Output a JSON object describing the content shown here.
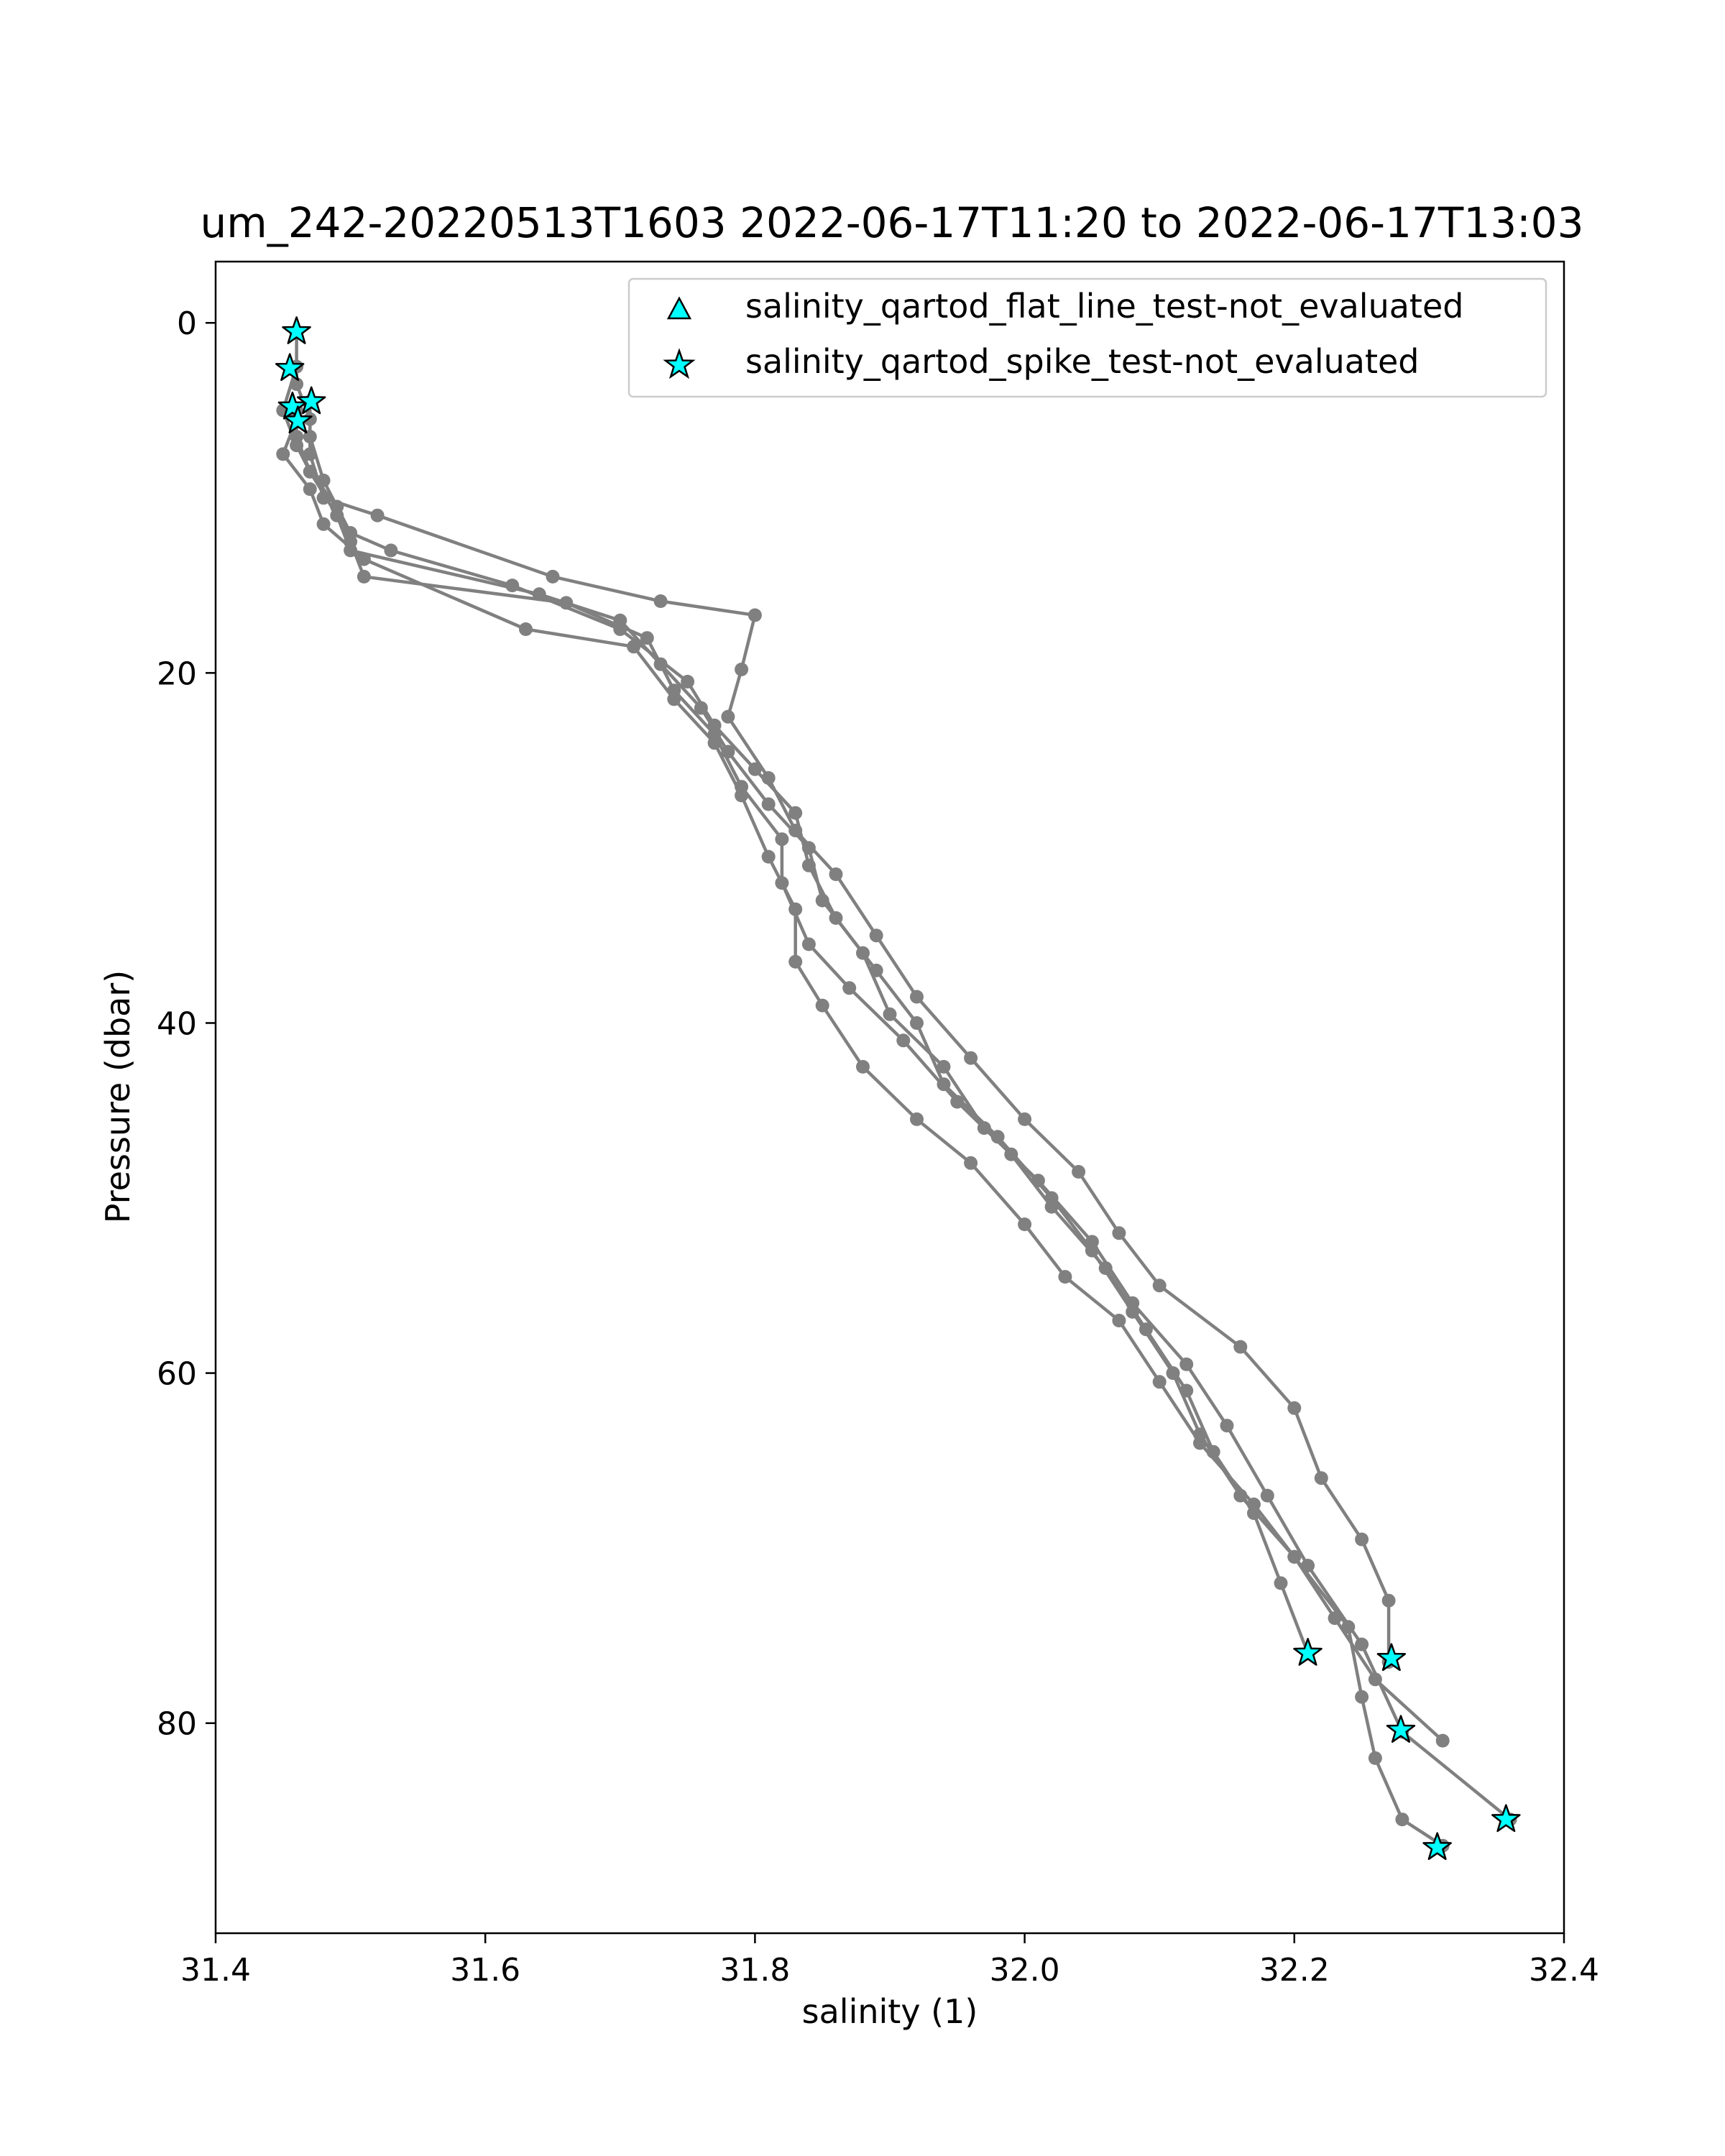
{
  "chart_data": {
    "type": "scatter",
    "title": "um_242-20220513T1603 2022-06-17T11:20 to 2022-06-17T13:03",
    "xlabel": "salinity (1)",
    "ylabel": "Pressure (dbar)",
    "xlim": [
      31.4,
      32.4
    ],
    "ylim": [
      92,
      -3.5
    ],
    "y_inverted": true,
    "xticks": [
      31.4,
      31.6,
      31.8,
      32.0,
      32.2,
      32.4
    ],
    "xtick_labels": [
      "31.4",
      "31.6",
      "31.8",
      "32.0",
      "32.2",
      "32.4"
    ],
    "yticks": [
      0,
      20,
      40,
      60,
      80
    ],
    "ytick_labels": [
      "0",
      "20",
      "40",
      "60",
      "80"
    ],
    "grid": false,
    "legend_position": "top-right",
    "colors": {
      "profile": "#808080",
      "flag": "#00FFFF",
      "flag_edge": "#000000"
    },
    "legend": [
      {
        "label": "salinity_qartod_flat_line_test-not_evaluated",
        "marker": "triangle"
      },
      {
        "label": "salinity_qartod_spike_test-not_evaluated",
        "marker": "star"
      }
    ],
    "series": [
      {
        "marker": "circle",
        "x": [
          31.46,
          31.46,
          31.47,
          31.47,
          31.48,
          31.52,
          31.65,
          31.73,
          31.8,
          31.79,
          31.78,
          31.81,
          31.83,
          31.86,
          31.89,
          31.92,
          31.96,
          32.0,
          32.04,
          32.07,
          32.1,
          32.16,
          32.2,
          32.22,
          32.25,
          32.27,
          32.27
        ],
        "y": [
          0.5,
          3.5,
          5.5,
          7.5,
          10.0,
          11.0,
          14.5,
          15.9,
          16.7,
          19.8,
          22.5,
          26.0,
          29.0,
          31.5,
          35.0,
          38.5,
          42.0,
          45.5,
          48.5,
          52.0,
          55.0,
          58.5,
          62.0,
          66.0,
          69.5,
          73.0,
          76.5
        ]
      },
      {
        "marker": "circle",
        "x": [
          31.46,
          31.45,
          31.46,
          31.47,
          31.49,
          31.5,
          31.64,
          31.7,
          31.73,
          31.76,
          31.78,
          31.81,
          31.84,
          31.85,
          31.88,
          31.9,
          31.94,
          31.97,
          32.01,
          32.05,
          32.08,
          32.12,
          32.15,
          32.18,
          32.21,
          32.25,
          32.28,
          32.36
        ],
        "y": [
          2.5,
          5.0,
          7.0,
          8.5,
          11.0,
          13.0,
          15.5,
          17.0,
          19.5,
          22.0,
          24.5,
          27.5,
          30.0,
          33.0,
          36.0,
          39.5,
          42.5,
          46.0,
          49.0,
          52.5,
          56.0,
          59.5,
          63.0,
          67.0,
          71.0,
          75.5,
          80.5,
          85.5
        ]
      },
      {
        "marker": "circle",
        "x": [
          31.47,
          31.47,
          31.48,
          31.5,
          31.53,
          31.62,
          31.7,
          31.75,
          31.77,
          31.8,
          31.83,
          31.84,
          31.86,
          31.89,
          31.92,
          31.94,
          31.98,
          32.02,
          32.05,
          32.08,
          32.11,
          32.13,
          32.16,
          32.2,
          32.23,
          32.26,
          32.31
        ],
        "y": [
          4.5,
          6.5,
          9.0,
          12.0,
          13.0,
          15.0,
          17.5,
          20.5,
          23.0,
          25.5,
          28.0,
          31.0,
          34.0,
          37.0,
          40.0,
          43.5,
          46.5,
          50.0,
          53.0,
          56.5,
          60.0,
          63.5,
          67.0,
          70.5,
          74.0,
          77.5,
          81.0
        ]
      },
      {
        "marker": "circle",
        "x": [
          31.46,
          31.46,
          31.47,
          31.49,
          31.5,
          31.51,
          31.66,
          31.72,
          31.74,
          31.77,
          31.79,
          31.82,
          31.82,
          31.84,
          31.87,
          31.91,
          31.95,
          31.99,
          32.02,
          32.06,
          32.09,
          32.12,
          32.14,
          32.17,
          32.19,
          32.21
        ],
        "y": [
          5.0,
          6.5,
          8.5,
          10.5,
          12.5,
          14.5,
          16.0,
          18.0,
          21.0,
          23.5,
          26.5,
          29.5,
          32.0,
          35.5,
          38.0,
          41.0,
          44.5,
          47.5,
          50.5,
          54.0,
          57.5,
          61.0,
          64.5,
          68.0,
          72.0,
          76.0
        ]
      },
      {
        "marker": "circle",
        "x": [
          31.46,
          31.45,
          31.47,
          31.48,
          31.51,
          31.63,
          31.71,
          31.74,
          31.77,
          31.79,
          31.81,
          31.83,
          31.83,
          31.85,
          31.88,
          31.92,
          31.96,
          32.0,
          32.03,
          32.07,
          32.1,
          32.13,
          32.17,
          32.2,
          32.24,
          32.25,
          32.26,
          32.28,
          32.31
        ],
        "y": [
          5.5,
          7.5,
          9.5,
          11.5,
          13.5,
          17.5,
          18.5,
          21.5,
          24.0,
          27.0,
          30.5,
          33.5,
          36.5,
          39.0,
          42.5,
          45.5,
          48.0,
          51.5,
          54.5,
          57.0,
          60.5,
          64.0,
          67.5,
          70.5,
          74.5,
          78.5,
          82.0,
          85.5,
          87.0
        ]
      }
    ],
    "flagged_points": [
      {
        "test": "spike",
        "x": 31.46,
        "y": 0.5
      },
      {
        "test": "spike",
        "x": 31.455,
        "y": 2.6
      },
      {
        "test": "spike",
        "x": 31.457,
        "y": 4.8
      },
      {
        "test": "spike",
        "x": 31.471,
        "y": 4.5
      },
      {
        "test": "spike",
        "x": 31.461,
        "y": 5.6
      },
      {
        "test": "spike",
        "x": 32.21,
        "y": 76.0
      },
      {
        "test": "spike",
        "x": 32.272,
        "y": 76.3
      },
      {
        "test": "spike",
        "x": 32.279,
        "y": 80.4
      },
      {
        "test": "spike",
        "x": 32.357,
        "y": 85.5
      },
      {
        "test": "spike",
        "x": 32.306,
        "y": 87.1
      }
    ]
  }
}
